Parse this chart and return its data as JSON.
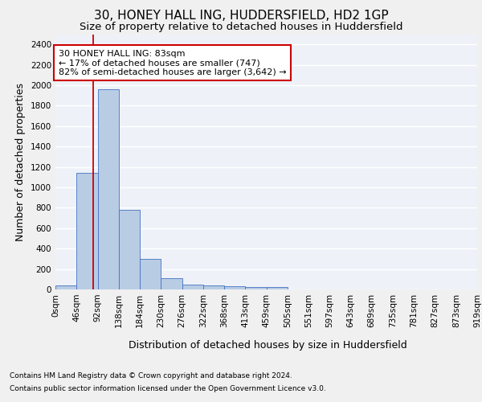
{
  "title": "30, HONEY HALL ING, HUDDERSFIELD, HD2 1GP",
  "subtitle": "Size of property relative to detached houses in Huddersfield",
  "xlabel": "Distribution of detached houses by size in Huddersfield",
  "ylabel": "Number of detached properties",
  "footnote1": "Contains HM Land Registry data © Crown copyright and database right 2024.",
  "footnote2": "Contains public sector information licensed under the Open Government Licence v3.0.",
  "bin_labels": [
    "0sqm",
    "46sqm",
    "92sqm",
    "138sqm",
    "184sqm",
    "230sqm",
    "276sqm",
    "322sqm",
    "368sqm",
    "413sqm",
    "459sqm",
    "505sqm",
    "551sqm",
    "597sqm",
    "643sqm",
    "689sqm",
    "735sqm",
    "781sqm",
    "827sqm",
    "873sqm",
    "919sqm"
  ],
  "bar_values": [
    40,
    1140,
    1960,
    780,
    300,
    110,
    50,
    40,
    30,
    20,
    20,
    0,
    0,
    0,
    0,
    0,
    0,
    0,
    0,
    0
  ],
  "bar_color": "#b8cce4",
  "bar_edge_color": "#4472c4",
  "ylim": [
    0,
    2500
  ],
  "yticks": [
    0,
    200,
    400,
    600,
    800,
    1000,
    1200,
    1400,
    1600,
    1800,
    2000,
    2200,
    2400
  ],
  "property_line_x": 1.8,
  "property_line_color": "#cc0000",
  "annotation_text": "30 HONEY HALL ING: 83sqm\n← 17% of detached houses are smaller (747)\n82% of semi-detached houses are larger (3,642) →",
  "annotation_box_color": "#cc0000",
  "background_color": "#eef2f8",
  "grid_color": "#ffffff",
  "title_fontsize": 11,
  "subtitle_fontsize": 9.5,
  "axis_label_fontsize": 9,
  "tick_fontsize": 7.5,
  "annotation_fontsize": 8,
  "footnote_fontsize": 6.5
}
